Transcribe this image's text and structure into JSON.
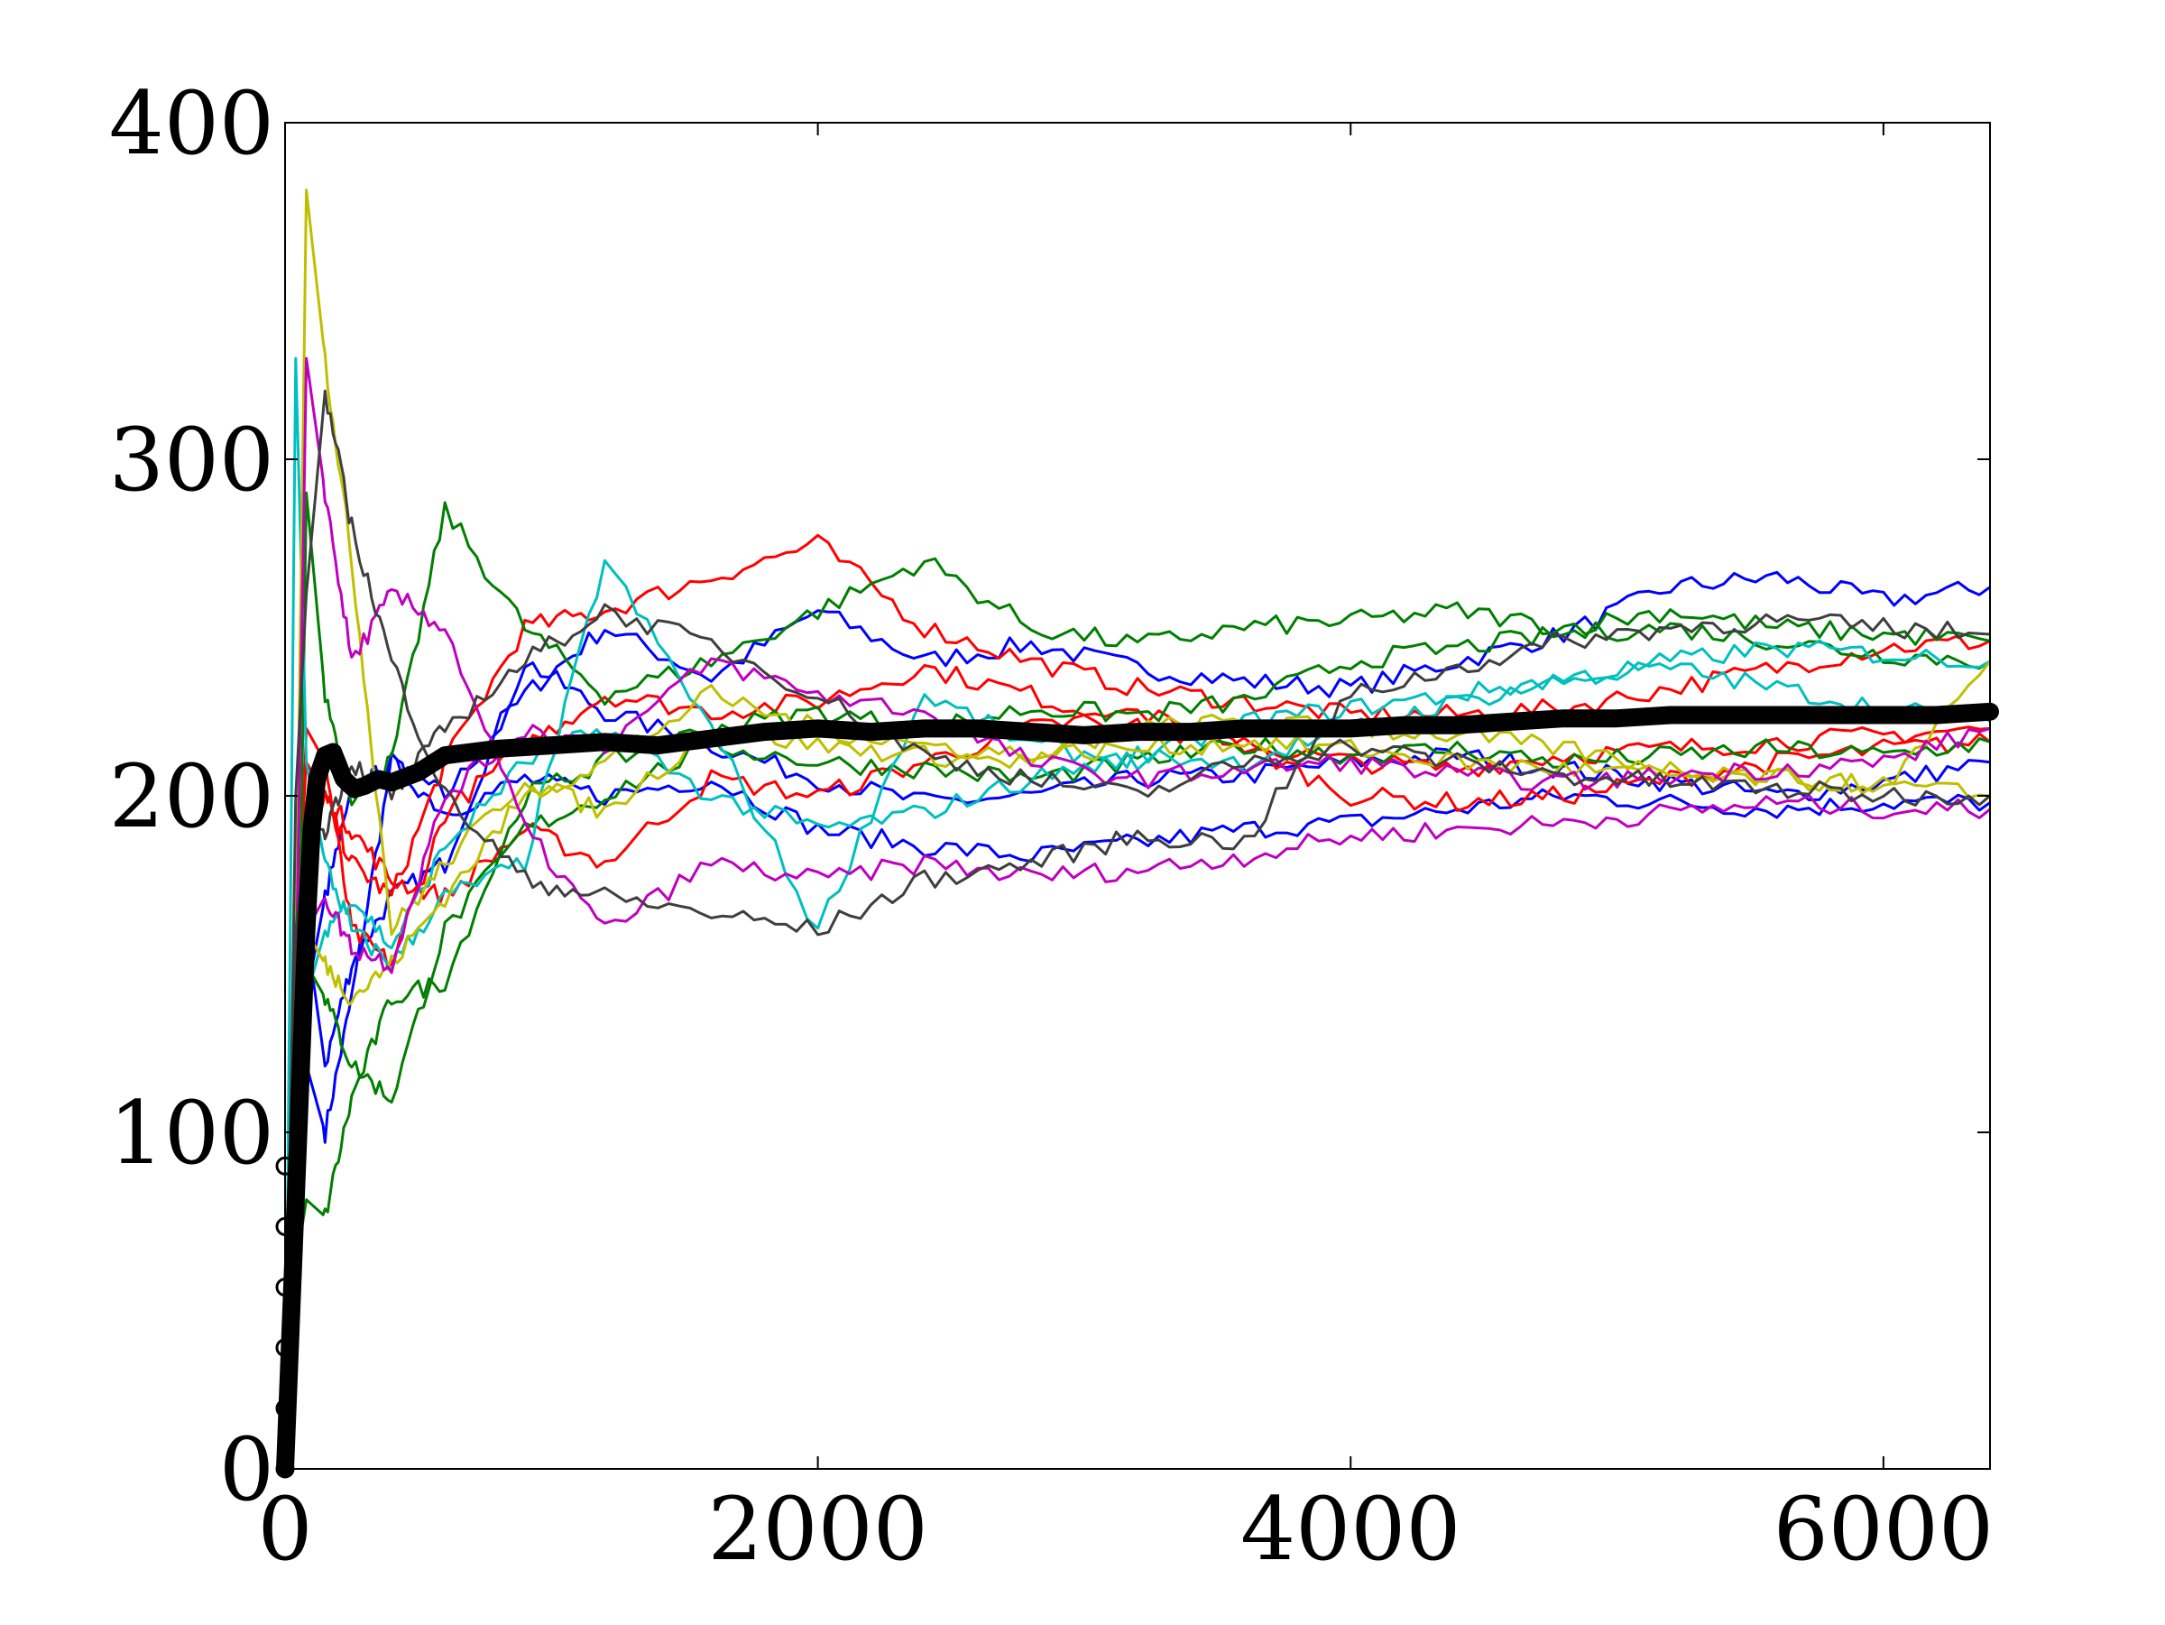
{
  "chart_data": {
    "type": "line",
    "title": "",
    "xlabel": "",
    "ylabel": "",
    "xlim": [
      0,
      6400
    ],
    "ylim": [
      0,
      400
    ],
    "x_ticks": [
      0,
      2000,
      4000,
      6000
    ],
    "y_ticks": [
      0,
      100,
      200,
      300,
      400
    ],
    "grid": false,
    "legend": "none",
    "series": [
      {
        "color": "#0000ff",
        "x": [
          0,
          40,
          80,
          150,
          250,
          400,
          600,
          900,
          1200,
          1600,
          2000,
          2400,
          2800,
          3200,
          3600,
          4000,
          4400,
          4800,
          5200,
          5600,
          6000,
          6400
        ],
        "y": [
          0,
          160,
          120,
          100,
          140,
          210,
          200,
          230,
          250,
          235,
          255,
          240,
          245,
          238,
          234,
          232,
          240,
          248,
          262,
          265,
          258,
          262
        ]
      },
      {
        "color": "#0000ff",
        "x": [
          0,
          40,
          80,
          150,
          250,
          400,
          600,
          900,
          1200,
          1600,
          2000,
          2400,
          2800,
          3200,
          3600,
          4000,
          4400,
          4800,
          5200,
          5600,
          6000,
          6400
        ],
        "y": [
          0,
          140,
          160,
          120,
          150,
          170,
          180,
          240,
          225,
          215,
          205,
          198,
          200,
          205,
          206,
          210,
          212,
          208,
          204,
          200,
          204,
          210
        ]
      },
      {
        "color": "#0000ff",
        "x": [
          0,
          40,
          80,
          150,
          250,
          400,
          600,
          900,
          1200,
          1600,
          2000,
          2400,
          2800,
          3200,
          3600,
          4000,
          4400,
          4800,
          5200,
          5600,
          6000,
          6400
        ],
        "y": [
          0,
          120,
          140,
          170,
          200,
          210,
          195,
          205,
          200,
          205,
          190,
          185,
          182,
          186,
          190,
          192,
          196,
          200,
          198,
          196,
          198,
          198
        ]
      },
      {
        "color": "#ff0000",
        "x": [
          0,
          40,
          80,
          150,
          250,
          400,
          600,
          900,
          1200,
          1600,
          2000,
          2400,
          2800,
          3200,
          3600,
          4000,
          4400,
          4800,
          5200,
          5600,
          6000,
          6400
        ],
        "y": [
          0,
          160,
          210,
          200,
          180,
          170,
          210,
          250,
          255,
          265,
          275,
          250,
          240,
          232,
          228,
          224,
          224,
          226,
          232,
          238,
          244,
          246
        ]
      },
      {
        "color": "#ff0000",
        "x": [
          0,
          40,
          80,
          150,
          250,
          400,
          600,
          900,
          1200,
          1600,
          2000,
          2400,
          2800,
          3200,
          3600,
          4000,
          4400,
          4800,
          5200,
          5600,
          6000,
          6400
        ],
        "y": [
          0,
          130,
          220,
          210,
          160,
          150,
          195,
          215,
          230,
          225,
          228,
          238,
          230,
          220,
          215,
          210,
          208,
          212,
          214,
          216,
          218,
          220
        ]
      },
      {
        "color": "#ff0000",
        "x": [
          0,
          40,
          80,
          150,
          250,
          400,
          600,
          900,
          1200,
          1600,
          2000,
          2400,
          2800,
          3200,
          3600,
          4000,
          4400,
          4800,
          5200,
          5600,
          6000,
          6400
        ],
        "y": [
          0,
          100,
          180,
          200,
          190,
          175,
          170,
          190,
          180,
          205,
          200,
          210,
          220,
          225,
          215,
          200,
          198,
          200,
          205,
          210,
          214,
          216
        ]
      },
      {
        "color": "#007f00",
        "x": [
          0,
          40,
          80,
          150,
          250,
          400,
          600,
          900,
          1200,
          1600,
          2000,
          2400,
          2800,
          3200,
          3600,
          4000,
          4400,
          4800,
          5200,
          5600,
          6000,
          6400
        ],
        "y": [
          0,
          80,
          290,
          230,
          200,
          210,
          285,
          250,
          230,
          240,
          255,
          270,
          250,
          245,
          250,
          252,
          255,
          250,
          255,
          250,
          248,
          246
        ]
      },
      {
        "color": "#007f00",
        "x": [
          0,
          40,
          80,
          150,
          250,
          400,
          600,
          900,
          1200,
          1600,
          2000,
          2400,
          2800,
          3200,
          3600,
          4000,
          4400,
          4800,
          5200,
          5600,
          6000,
          6400
        ],
        "y": [
          0,
          60,
          80,
          75,
          110,
          140,
          145,
          200,
          210,
          220,
          225,
          220,
          226,
          224,
          228,
          240,
          244,
          248,
          250,
          246,
          242,
          240
        ]
      },
      {
        "color": "#007f00",
        "x": [
          0,
          40,
          80,
          150,
          250,
          400,
          600,
          900,
          1200,
          1600,
          2000,
          2400,
          2800,
          3200,
          3600,
          4000,
          4400,
          4800,
          5200,
          5600,
          6000,
          6400
        ],
        "y": [
          0,
          100,
          150,
          140,
          120,
          110,
          160,
          190,
          200,
          215,
          210,
          208,
          205,
          210,
          215,
          212,
          214,
          210,
          212,
          214,
          212,
          216
        ]
      },
      {
        "color": "#00bfbf",
        "x": [
          0,
          40,
          80,
          150,
          250,
          400,
          600,
          900,
          1200,
          1600,
          2000,
          2400,
          2800,
          3200,
          3600,
          4000,
          4400,
          4800,
          5200,
          5600,
          6000,
          6400
        ],
        "y": [
          0,
          330,
          210,
          180,
          160,
          150,
          170,
          180,
          270,
          220,
          160,
          230,
          215,
          210,
          222,
          226,
          230,
          235,
          238,
          232,
          226,
          222
        ]
      },
      {
        "color": "#00bfbf",
        "x": [
          0,
          40,
          80,
          150,
          250,
          400,
          600,
          900,
          1200,
          1600,
          2000,
          2400,
          2800,
          3200,
          3600,
          4000,
          4400,
          4800,
          5200,
          5600,
          6000,
          6400
        ],
        "y": [
          0,
          180,
          140,
          160,
          170,
          155,
          185,
          210,
          220,
          200,
          190,
          195,
          205,
          212,
          210,
          220,
          228,
          234,
          240,
          244,
          242,
          240
        ]
      },
      {
        "color": "#bfbf00",
        "x": [
          0,
          40,
          80,
          150,
          250,
          400,
          600,
          900,
          1200,
          1600,
          2000,
          2400,
          2800,
          3200,
          3600,
          4000,
          4400,
          4800,
          5200,
          5600,
          6000,
          6400
        ],
        "y": [
          0,
          150,
          380,
          330,
          270,
          160,
          180,
          205,
          195,
          220,
          215,
          212,
          210,
          220,
          222,
          220,
          218,
          214,
          208,
          206,
          202,
          240
        ]
      },
      {
        "color": "#bfbf00",
        "x": [
          0,
          40,
          80,
          150,
          250,
          400,
          600,
          900,
          1200,
          1600,
          2000,
          2400,
          2800,
          3200,
          3600,
          4000,
          4400,
          4800,
          5200,
          5600,
          6000,
          6400
        ],
        "y": [
          0,
          120,
          160,
          150,
          140,
          150,
          170,
          200,
          210,
          230,
          220,
          215,
          212,
          214,
          216,
          214,
          210,
          208,
          206,
          205,
          203,
          200
        ]
      },
      {
        "color": "#bf00bf",
        "x": [
          0,
          40,
          80,
          150,
          250,
          400,
          600,
          900,
          1200,
          1600,
          2000,
          2400,
          2800,
          3200,
          3600,
          4000,
          4400,
          4800,
          5200,
          5600,
          6000,
          6400
        ],
        "y": [
          0,
          140,
          330,
          290,
          240,
          260,
          250,
          190,
          160,
          180,
          175,
          180,
          176,
          178,
          182,
          188,
          190,
          192,
          195,
          198,
          196,
          196
        ]
      },
      {
        "color": "#bf00bf",
        "x": [
          0,
          40,
          80,
          150,
          250,
          400,
          600,
          900,
          1200,
          1600,
          2000,
          2400,
          2800,
          3200,
          3600,
          4000,
          4400,
          4800,
          5200,
          5600,
          6000,
          6400
        ],
        "y": [
          0,
          120,
          160,
          170,
          155,
          150,
          200,
          220,
          215,
          240,
          230,
          225,
          210,
          205,
          208,
          210,
          206,
          204,
          206,
          208,
          210,
          220
        ]
      },
      {
        "color": "#3f3f3f",
        "x": [
          0,
          40,
          80,
          150,
          250,
          400,
          600,
          900,
          1200,
          1600,
          2000,
          2400,
          2800,
          3200,
          3600,
          4000,
          4400,
          4800,
          5200,
          5600,
          6000,
          6400
        ],
        "y": [
          0,
          200,
          260,
          320,
          280,
          240,
          200,
          175,
          170,
          165,
          160,
          175,
          180,
          188,
          186,
          230,
          238,
          246,
          250,
          252,
          250,
          248
        ]
      },
      {
        "color": "#3f3f3f",
        "x": [
          0,
          40,
          80,
          150,
          250,
          400,
          600,
          900,
          1200,
          1600,
          2000,
          2400,
          2800,
          3200,
          3600,
          4000,
          4400,
          4800,
          5200,
          5600,
          6000,
          6400
        ],
        "y": [
          0,
          160,
          190,
          190,
          210,
          200,
          220,
          240,
          255,
          245,
          230,
          212,
          205,
          200,
          210,
          215,
          210,
          206,
          204,
          202,
          200,
          200
        ]
      }
    ],
    "mean_series": {
      "color": "#000000",
      "x": [
        0,
        20,
        40,
        60,
        80,
        100,
        120,
        150,
        180,
        220,
        260,
        300,
        350,
        400,
        500,
        600,
        800,
        1000,
        1200,
        1400,
        1600,
        1800,
        2000,
        2200,
        2400,
        2600,
        2800,
        3000,
        3200,
        3400,
        3600,
        3800,
        4000,
        4200,
        4400,
        4600,
        4800,
        5000,
        5200,
        5400,
        5600,
        5800,
        6000,
        6200,
        6400
      ],
      "y": [
        0,
        40,
        80,
        120,
        160,
        190,
        205,
        212,
        213,
        205,
        202,
        203,
        205,
        204,
        207,
        212,
        214,
        215,
        216,
        215,
        217,
        219,
        220,
        219,
        220,
        220,
        219,
        218,
        219,
        219,
        220,
        220,
        220,
        221,
        221,
        222,
        223,
        223,
        224,
        224,
        224,
        224,
        224,
        224,
        225
      ]
    }
  }
}
